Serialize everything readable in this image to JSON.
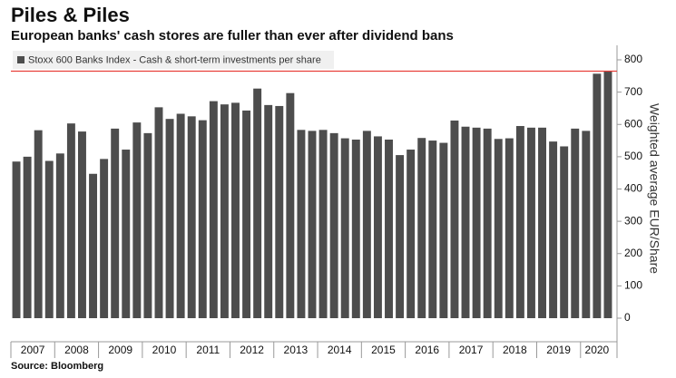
{
  "chart_data": {
    "type": "bar",
    "title": "Piles & Piles",
    "subtitle": "European banks' cash stores are fuller than ever after dividend bans",
    "source": "Source: Bloomberg",
    "y_axis_label": "Weighted average EUR/Share",
    "categories": [
      "2007",
      null,
      null,
      null,
      "2008",
      null,
      null,
      null,
      "2009",
      null,
      null,
      null,
      "2010",
      null,
      null,
      null,
      "2011",
      null,
      null,
      null,
      "2012",
      null,
      null,
      null,
      "2013",
      null,
      null,
      null,
      "2014",
      null,
      null,
      null,
      "2015",
      null,
      null,
      null,
      "2016",
      null,
      null,
      null,
      "2017",
      null,
      null,
      null,
      "2018",
      null,
      null,
      null,
      "2019",
      null,
      null,
      null,
      "2020",
      null,
      null
    ],
    "series": [
      {
        "name": "Stoxx 600 Banks Index - Cash & short-term investments per share",
        "color": "#4d4d4d",
        "values": [
          485,
          500,
          582,
          487,
          510,
          603,
          578,
          447,
          493,
          587,
          522,
          606,
          573,
          653,
          617,
          633,
          625,
          613,
          672,
          662,
          667,
          643,
          711,
          660,
          657,
          697,
          583,
          580,
          583,
          573,
          557,
          553,
          580,
          563,
          553,
          505,
          522,
          558,
          550,
          543,
          612,
          593,
          590,
          587,
          555,
          557,
          595,
          590,
          590,
          547,
          532,
          587,
          580,
          757,
          765
        ]
      }
    ],
    "reference_line": {
      "value": 765,
      "color": "#e8403a"
    },
    "ylim": [
      0,
      800
    ],
    "yticks": [
      0,
      100,
      200,
      300,
      400,
      500,
      600,
      700,
      800
    ],
    "grid": false,
    "legend": "top-left"
  }
}
